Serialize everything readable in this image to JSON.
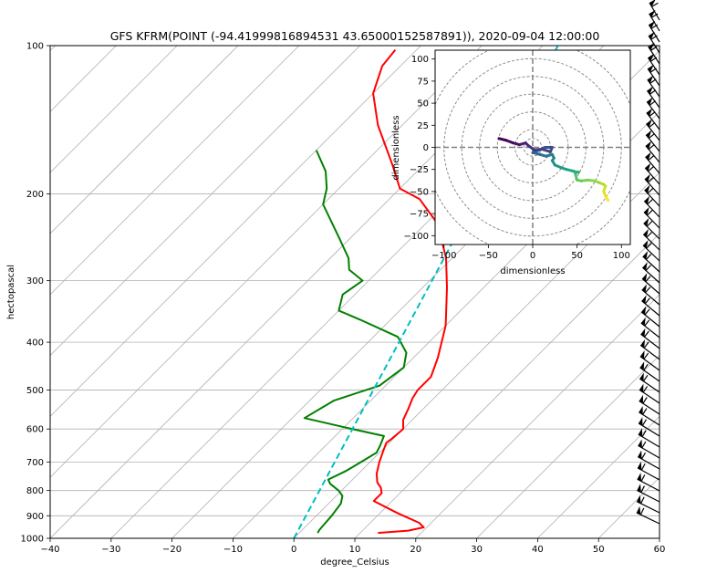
{
  "chart_data": [
    {
      "type": "line",
      "subtype": "skew-t",
      "title": "GFS KFRM(POINT (-94.41999816894531 43.65000152587891)), 2020-09-04 12:00:00",
      "xlabel": "degree_Celsius",
      "ylabel": "hectopascal",
      "xlim": [
        -40,
        60
      ],
      "ylim": [
        1000,
        100
      ],
      "yscale": "log",
      "x_ticks": [
        "−40",
        "−30",
        "−20",
        "−10",
        "0",
        "10",
        "20",
        "30",
        "40",
        "50",
        "60"
      ],
      "y_ticks": [
        "100",
        "200",
        "300",
        "400",
        "500",
        "600",
        "700",
        "800",
        "900",
        "1000"
      ],
      "grid": true,
      "series": [
        {
          "role": "temperature",
          "color": "#ff0000",
          "points": [
            [
              12.9,
              975
            ],
            [
              17.5,
              965
            ],
            [
              19.5,
              950
            ],
            [
              18.0,
              930
            ],
            [
              13.0,
              890
            ],
            [
              7.0,
              840
            ],
            [
              7.0,
              810
            ],
            [
              6.0,
              790
            ],
            [
              4.5,
              770
            ],
            [
              3.0,
              740
            ],
            [
              1.5,
              700
            ],
            [
              0.5,
              670
            ],
            [
              -0.5,
              640
            ],
            [
              -0.3,
              630
            ],
            [
              0.0,
              600
            ],
            [
              -1.5,
              575
            ],
            [
              -2.5,
              545
            ],
            [
              -3.5,
              520
            ],
            [
              -4.0,
              500
            ],
            [
              -4.0,
              470
            ],
            [
              -6.0,
              430
            ],
            [
              -10.0,
              370
            ],
            [
              -16.0,
              310
            ],
            [
              -21.0,
              270
            ],
            [
              -28.0,
              230
            ],
            [
              -35.0,
              205
            ],
            [
              -40.0,
              195
            ],
            [
              -45.0,
              175
            ],
            [
              -54.0,
              145
            ],
            [
              -60.0,
              125
            ],
            [
              -63.0,
              110
            ],
            [
              -63.5,
              102
            ]
          ]
        },
        {
          "role": "dewpoint",
          "color": "#008000",
          "points": [
            [
              3.0,
              975
            ],
            [
              2.8,
              960
            ],
            [
              2.7,
              940
            ],
            [
              2.5,
              900
            ],
            [
              2.0,
              850
            ],
            [
              1.0,
              820
            ],
            [
              -0.5,
              800
            ],
            [
              -3.0,
              775
            ],
            [
              -4.0,
              760
            ],
            [
              -2.5,
              730
            ],
            [
              -1.5,
              700
            ],
            [
              -0.5,
              670
            ],
            [
              -1.0,
              650
            ],
            [
              -2.0,
              620
            ],
            [
              -10.0,
              595
            ],
            [
              -18.0,
              570
            ],
            [
              -16.0,
              525
            ],
            [
              -11.0,
              490
            ],
            [
              -10.0,
              450
            ],
            [
              -12.0,
              420
            ],
            [
              -16.0,
              390
            ],
            [
              -25.0,
              360
            ],
            [
              -30.0,
              345
            ],
            [
              -32.0,
              320
            ],
            [
              -31.0,
              300
            ],
            [
              -35.0,
              285
            ],
            [
              -37.0,
              270
            ],
            [
              -42.0,
              245
            ],
            [
              -50.0,
              210
            ],
            [
              -52.0,
              195
            ],
            [
              -55.0,
              180
            ],
            [
              -60.0,
              163
            ]
          ]
        },
        {
          "role": "reference-line",
          "color": "#00bfbf",
          "style": "dashed",
          "points": [
            [
              0.0,
              1000
            ],
            [
              -37.5,
              100
            ]
          ]
        }
      ]
    },
    {
      "type": "line",
      "subtype": "hodograph",
      "xlabel": "dimensionless",
      "ylabel": "dimensionless",
      "xlim": [
        -110,
        110
      ],
      "ylim": [
        -110,
        110
      ],
      "x_ticks": [
        "−100",
        "−50",
        "0",
        "50",
        "100"
      ],
      "y_ticks": [
        "100",
        "75",
        "50",
        "25",
        "0",
        "−25",
        "−50",
        "−75",
        "−100"
      ],
      "range_rings": [
        10,
        20,
        40,
        60,
        80,
        100,
        120
      ],
      "colormap": "viridis",
      "u": [
        85,
        82,
        80,
        82,
        80,
        75,
        70,
        62,
        55,
        50,
        48,
        50,
        52,
        49,
        46,
        38,
        32,
        25,
        22,
        24,
        22,
        15,
        8,
        0,
        8,
        14,
        22,
        20,
        10,
        2,
        -5,
        -8,
        -15,
        -22,
        -30,
        -38
      ],
      "v": [
        -60,
        -55,
        -50,
        -44,
        -42,
        -40,
        -38,
        -37,
        -38,
        -37,
        -30,
        -28,
        -28,
        -28,
        -27,
        -25,
        -23,
        -20,
        -15,
        -12,
        -8,
        -10,
        -8,
        -6,
        -3,
        0,
        0,
        -5,
        -2,
        -3,
        2,
        5,
        3,
        5,
        8,
        10
      ]
    }
  ]
}
